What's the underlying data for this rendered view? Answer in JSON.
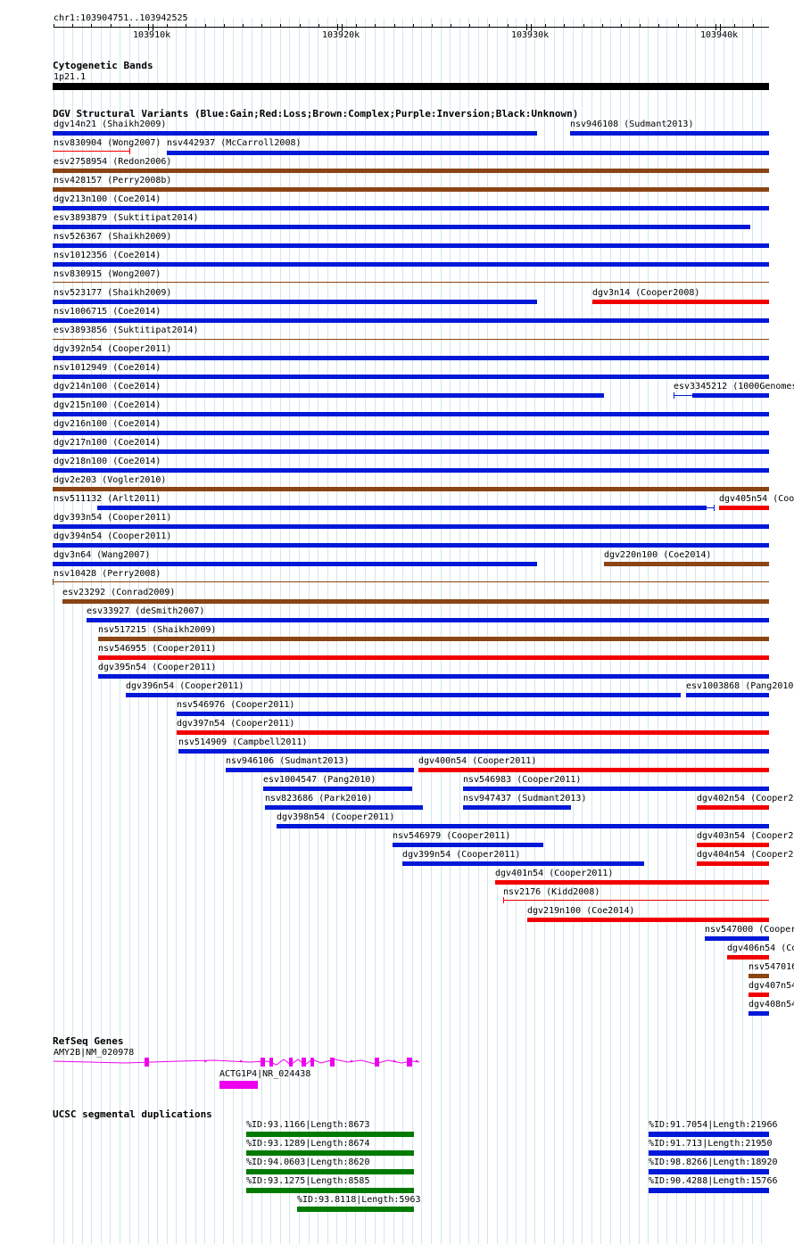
{
  "colors": {
    "blue": "#0018d8",
    "red": "#f20000",
    "brown": "#8b4414",
    "black": "#000000",
    "magenta": "#ee00ee",
    "green": "#007a00",
    "grid": "#cfe8ee"
  },
  "ruler": {
    "location": "chr1:103904751..103942525",
    "ticks": [
      "103910k",
      "103920k",
      "103930k",
      "103940k"
    ]
  },
  "cytoband": {
    "title": "Cytogenetic Bands",
    "label": "1p21.1"
  },
  "dgv": {
    "title": "DGV Structural Variants (Blue:Gain;Red:Loss;Brown:Complex;Purple:Inversion;Black:Unknown)",
    "features": [
      {
        "label": "dgv14n21 (Shaikh2009)",
        "color": "blue"
      },
      {
        "label": "nsv946108 (Sudmant2013)",
        "color": "blue"
      },
      {
        "label": "nsv830904 (Wong2007)",
        "color": "red"
      },
      {
        "label": "nsv442937 (McCarroll2008)",
        "color": "blue"
      },
      {
        "label": "esv2758954 (Redon2006)",
        "color": "brown"
      },
      {
        "label": "nsv428157 (Perry2008b)",
        "color": "brown"
      },
      {
        "label": "dgv213n100 (Coe2014)",
        "color": "blue"
      },
      {
        "label": "esv3893879 (Suktitipat2014)",
        "color": "blue"
      },
      {
        "label": "nsv526367 (Shaikh2009)",
        "color": "blue"
      },
      {
        "label": "nsv1012356 (Coe2014)",
        "color": "blue"
      },
      {
        "label": "nsv830915 (Wong2007)",
        "color": "brown"
      },
      {
        "label": "nsv523177 (Shaikh2009)",
        "color": "blue"
      },
      {
        "label": "dgv3n14 (Cooper2008)",
        "color": "red"
      },
      {
        "label": "nsv1006715 (Coe2014)",
        "color": "blue"
      },
      {
        "label": "esv3893856 (Suktitipat2014)",
        "color": "brown"
      },
      {
        "label": "dgv392n54 (Cooper2011)",
        "color": "blue"
      },
      {
        "label": "nsv1012949 (Coe2014)",
        "color": "blue"
      },
      {
        "label": "dgv214n100 (Coe2014)",
        "color": "blue"
      },
      {
        "label": "esv3345212 (1000Genomes",
        "color": "blue"
      },
      {
        "label": "dgv215n100 (Coe2014)",
        "color": "blue"
      },
      {
        "label": "dgv216n100 (Coe2014)",
        "color": "blue"
      },
      {
        "label": "dgv217n100 (Coe2014)",
        "color": "blue"
      },
      {
        "label": "dgv218n100 (Coe2014)",
        "color": "blue"
      },
      {
        "label": "dgv2e203 (Vogler2010)",
        "color": "brown"
      },
      {
        "label": "nsv511132 (Arlt2011)",
        "color": "blue"
      },
      {
        "label": "dgv405n54 (Coo",
        "color": "red"
      },
      {
        "label": "dgv393n54 (Cooper2011)",
        "color": "blue"
      },
      {
        "label": "dgv394n54 (Cooper2011)",
        "color": "blue"
      },
      {
        "label": "dgv3n64 (Wang2007)",
        "color": "blue"
      },
      {
        "label": "dgv220n100 (Coe2014)",
        "color": "brown"
      },
      {
        "label": "nsv10428 (Perry2008)",
        "color": "brown"
      },
      {
        "label": "esv23292 (Conrad2009)",
        "color": "brown"
      },
      {
        "label": "esv33927 (deSmith2007)",
        "color": "blue"
      },
      {
        "label": "nsv517215 (Shaikh2009)",
        "color": "brown"
      },
      {
        "label": "nsv546955 (Cooper2011)",
        "color": "red"
      },
      {
        "label": "dgv395n54 (Cooper2011)",
        "color": "blue"
      },
      {
        "label": "dgv396n54 (Cooper2011)",
        "color": "blue"
      },
      {
        "label": "esv1003868 (Pang2010",
        "color": "blue"
      },
      {
        "label": "nsv546976 (Cooper2011)",
        "color": "blue"
      },
      {
        "label": "dgv397n54 (Cooper2011)",
        "color": "red"
      },
      {
        "label": "nsv514909 (Campbell2011)",
        "color": "blue"
      },
      {
        "label": "nsv946106 (Sudmant2013)",
        "color": "blue"
      },
      {
        "label": "dgv400n54 (Cooper2011)",
        "color": "red"
      },
      {
        "label": "esv1004547 (Pang2010)",
        "color": "blue"
      },
      {
        "label": "nsv546983 (Cooper2011)",
        "color": "blue"
      },
      {
        "label": "nsv823686 (Park2010)",
        "color": "blue"
      },
      {
        "label": "nsv947437 (Sudmant2013)",
        "color": "blue"
      },
      {
        "label": "dgv402n54 (Cooper20",
        "color": "red"
      },
      {
        "label": "dgv398n54 (Cooper2011)",
        "color": "blue"
      },
      {
        "label": "nsv546979 (Cooper2011)",
        "color": "blue"
      },
      {
        "label": "dgv403n54 (Cooper20",
        "color": "red"
      },
      {
        "label": "dgv399n54 (Cooper2011)",
        "color": "blue"
      },
      {
        "label": "dgv404n54 (Cooper20",
        "color": "red"
      },
      {
        "label": "dgv401n54 (Cooper2011)",
        "color": "red"
      },
      {
        "label": "nsv2176 (Kidd2008)",
        "color": "red"
      },
      {
        "label": "dgv219n100 (Coe2014)",
        "color": "red"
      },
      {
        "label": "nsv547000 (Cooper",
        "color": "blue"
      },
      {
        "label": "dgv406n54 (Co",
        "color": "red"
      },
      {
        "label": "nsv547016",
        "color": "brown"
      },
      {
        "label": "dgv407n54",
        "color": "red"
      },
      {
        "label": "dgv408n54",
        "color": "blue"
      }
    ]
  },
  "refseq": {
    "title": "RefSeq Genes",
    "genes": [
      "AMY2B|NM_020978",
      "ACTG1P4|NR_024438"
    ]
  },
  "segdup": {
    "title": "UCSC segmental duplications",
    "features": [
      {
        "label": "%ID:93.1166|Length:8673",
        "color": "green"
      },
      {
        "label": "%ID:93.1289|Length:8674",
        "color": "green"
      },
      {
        "label": "%ID:94.0603|Length:8620",
        "color": "green"
      },
      {
        "label": "%ID:93.1275|Length:8585",
        "color": "green"
      },
      {
        "label": "%ID:93.8118|Length:5963",
        "color": "green"
      },
      {
        "label": "%ID:91.7054|Length:21966",
        "color": "blue"
      },
      {
        "label": "%ID:91.713|Length:21950",
        "color": "blue"
      },
      {
        "label": "%ID:98.8266|Length:18920",
        "color": "blue"
      },
      {
        "label": "%ID:90.4288|Length:15766",
        "color": "blue"
      }
    ]
  }
}
